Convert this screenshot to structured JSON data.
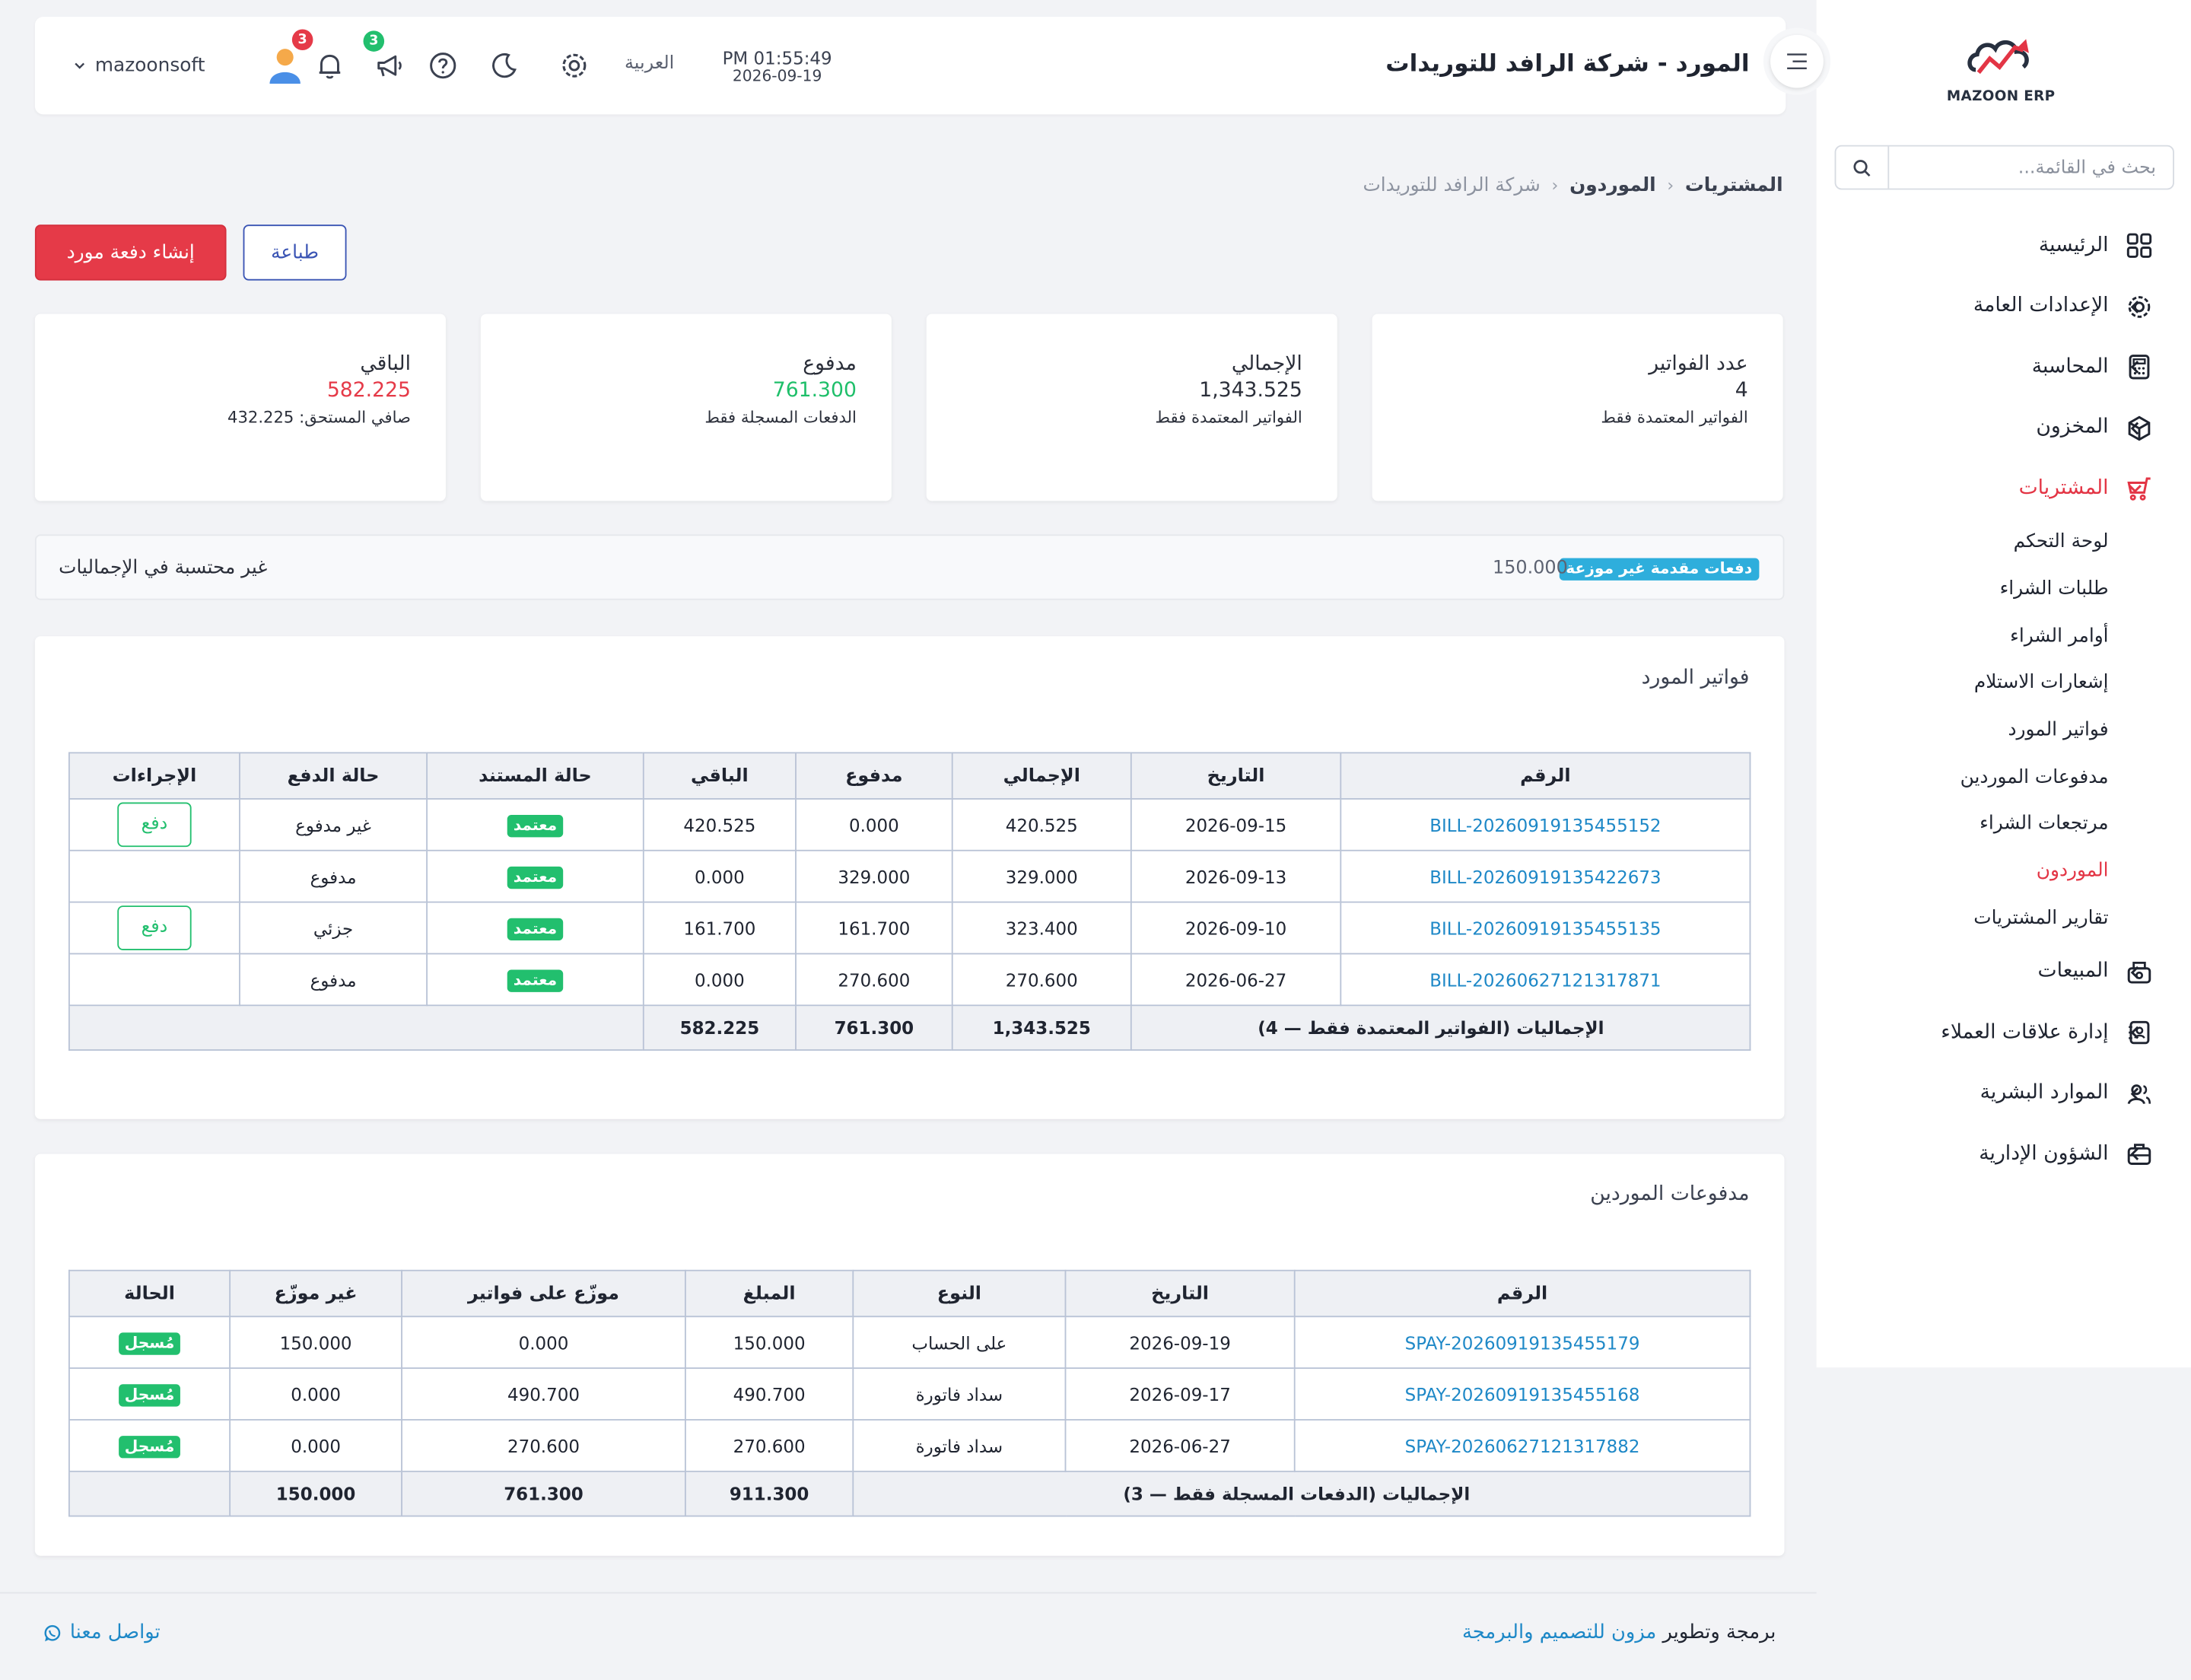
{
  "app": {
    "name": "MAZOON ERP",
    "logo_tag": "ERP ERP"
  },
  "header": {
    "title": "المورد - شركة الرافد للتوريدات",
    "time": "PM 01:55:49",
    "date": "2026-09-19",
    "language": "العربية",
    "messages_badge": "3",
    "notifications_badge": "3",
    "username": "mazoonsoft"
  },
  "sidebar": {
    "search_placeholder": "بحث في القائمة...",
    "items": [
      {
        "label": "الرئيسية",
        "icon": "grid-icon",
        "chevron": false
      },
      {
        "label": "الإعدادات العامة",
        "icon": "gear-icon",
        "chevron": true
      },
      {
        "label": "المحاسبة",
        "icon": "calculator-icon",
        "chevron": true
      },
      {
        "label": "المخزون",
        "icon": "box-icon",
        "chevron": true
      },
      {
        "label": "المشتريات",
        "icon": "cart-icon",
        "chevron": true,
        "active": true
      }
    ],
    "subitems": [
      {
        "label": "لوحة التحكم"
      },
      {
        "label": "طلبات الشراء"
      },
      {
        "label": "أوامر الشراء"
      },
      {
        "label": "إشعارات الاستلام"
      },
      {
        "label": "فواتير المورد"
      },
      {
        "label": "مدفوعات الموردين"
      },
      {
        "label": "مرتجعات الشراء"
      },
      {
        "label": "الموردون",
        "active": true
      },
      {
        "label": "تقارير المشتريات"
      }
    ],
    "items_after": [
      {
        "label": "المبيعات",
        "icon": "cash-register-icon"
      },
      {
        "label": "إدارة علاقات العملاء",
        "icon": "contacts-icon"
      },
      {
        "label": "الموارد البشرية",
        "icon": "users-icon"
      },
      {
        "label": "الشؤون الإدارية",
        "icon": "briefcase-icon"
      }
    ]
  },
  "breadcrumb": {
    "level1": "المشتريات",
    "level2": "الموردون",
    "current": "شركة الرافد للتوريدات"
  },
  "actions": {
    "create_label": "إنشاء دفعة مورد",
    "print_label": "طباعة"
  },
  "cards": [
    {
      "label": "عدد الفواتير",
      "value": "4",
      "sub": "الفواتير المعتمدة فقط",
      "color": "#2b2f3a"
    },
    {
      "label": "الإجمالي",
      "value": "1,343.525",
      "sub": "الفواتير المعتمدة فقط",
      "color": "#2b2f3a"
    },
    {
      "label": "مدفوع",
      "value": "761.300",
      "sub": "الدفعات المسجلة فقط",
      "color": "#1fbf6a"
    },
    {
      "label": "الباقي",
      "value": "582.225",
      "sub": "صافي المستحق: 432.225",
      "color": "#e53a48"
    }
  ],
  "advance": {
    "badge": "دفعات مقدمة غير موزعة",
    "amount": "150.000",
    "note": "غير محتسبة في الإجماليات"
  },
  "bills": {
    "title": "فواتير المورد",
    "columns": [
      "الرقم",
      "التاريخ",
      "الإجمالي",
      "مدفوع",
      "الباقي",
      "حالة المستند",
      "حالة الدفع",
      "الإجراءات"
    ],
    "rows": [
      {
        "number": "BILL-20260919135455152",
        "date": "2026-09-15",
        "total": "420.525",
        "paid": "0.000",
        "remaining": "420.525",
        "doc_status": "معتمد",
        "pay_status": "غير مدفوع",
        "action": "دفع"
      },
      {
        "number": "BILL-20260919135422673",
        "date": "2026-09-13",
        "total": "329.000",
        "paid": "329.000",
        "remaining": "0.000",
        "doc_status": "معتمد",
        "pay_status": "مدفوع",
        "action": ""
      },
      {
        "number": "BILL-20260919135455135",
        "date": "2026-09-10",
        "total": "323.400",
        "paid": "161.700",
        "remaining": "161.700",
        "doc_status": "معتمد",
        "pay_status": "جزئي",
        "action": "دفع"
      },
      {
        "number": "BILL-20260627121317871",
        "date": "2026-06-27",
        "total": "270.600",
        "paid": "270.600",
        "remaining": "0.000",
        "doc_status": "معتمد",
        "pay_status": "مدفوع",
        "action": ""
      }
    ],
    "totals": {
      "label": "الإجماليات",
      "note": "(الفواتير المعتمدة فقط — 4)",
      "total": "1,343.525",
      "paid": "761.300",
      "remaining": "582.225"
    }
  },
  "payments": {
    "title": "مدفوعات الموردين",
    "columns": [
      "الرقم",
      "التاريخ",
      "النوع",
      "المبلغ",
      "موزّع على فواتير",
      "غير موزّع",
      "الحالة"
    ],
    "rows": [
      {
        "number": "SPAY-20260919135455179",
        "date": "2026-09-19",
        "type": "على الحساب",
        "amount": "150.000",
        "allocated": "0.000",
        "unallocated": "150.000",
        "status": "مُسجل"
      },
      {
        "number": "SPAY-20260919135455168",
        "date": "2026-09-17",
        "type": "سداد فاتورة",
        "amount": "490.700",
        "allocated": "490.700",
        "unallocated": "0.000",
        "status": "مُسجل"
      },
      {
        "number": "SPAY-20260627121317882",
        "date": "2026-06-27",
        "type": "سداد فاتورة",
        "amount": "270.600",
        "allocated": "270.600",
        "unallocated": "0.000",
        "status": "مُسجل"
      }
    ],
    "totals": {
      "label": "الإجماليات",
      "note": "(الدفعات المسجلة فقط — 3)",
      "amount": "911.300",
      "allocated": "761.300",
      "unallocated": "150.000"
    }
  },
  "footer": {
    "credit_prefix": "برمجة وتطوير",
    "credit_link": "مزون للتصميم والبرمجة",
    "contact": "تواصل معنا"
  },
  "colors": {
    "accent_red": "#e53a48",
    "green": "#22bf6e",
    "link_blue": "#1e88c7",
    "badge_cyan": "#2eaedc"
  }
}
